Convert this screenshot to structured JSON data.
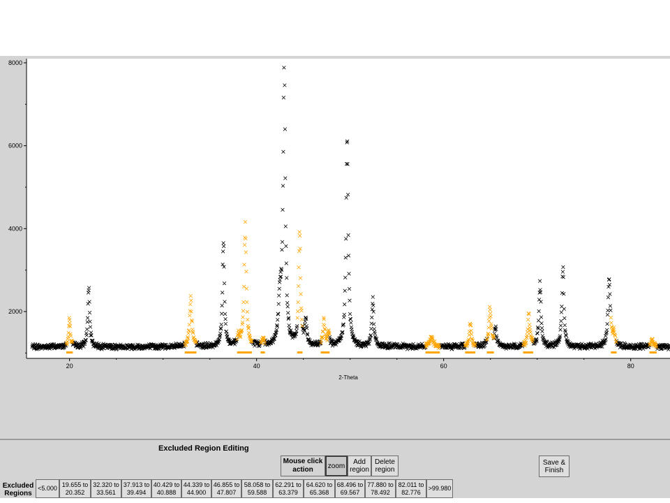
{
  "chart_data": {
    "type": "scatter",
    "xlabel": "2-Theta",
    "ylabel": "",
    "xlim": [
      15.4,
      84.2
    ],
    "ylim": [
      870,
      8100
    ],
    "x_ticks": [
      "20",
      "40",
      "60",
      "80"
    ],
    "y_ticks": [
      "2000",
      "4000",
      "6000",
      "8000"
    ],
    "baseline": 1150,
    "x_start": 16.0,
    "x_end": 84.2,
    "peaks": [
      {
        "x": 19.99,
        "height": 1800,
        "width": 0.12
      },
      {
        "x": 22.05,
        "height": 2550,
        "width": 0.12
      },
      {
        "x": 32.95,
        "height": 2320,
        "width": 0.14
      },
      {
        "x": 36.45,
        "height": 3750,
        "width": 0.12
      },
      {
        "x": 38.05,
        "height": 1350,
        "width": 0.15
      },
      {
        "x": 38.78,
        "height": 4000,
        "width": 0.14
      },
      {
        "x": 40.7,
        "height": 1300,
        "width": 0.15
      },
      {
        "x": 42.5,
        "height": 2200,
        "width": 0.18
      },
      {
        "x": 42.95,
        "height": 7950,
        "width": 0.14
      },
      {
        "x": 44.6,
        "height": 3820,
        "width": 0.12
      },
      {
        "x": 45.25,
        "height": 1800,
        "width": 0.12
      },
      {
        "x": 47.2,
        "height": 1750,
        "width": 0.12
      },
      {
        "x": 47.7,
        "height": 1500,
        "width": 0.12
      },
      {
        "x": 49.68,
        "height": 6120,
        "width": 0.14
      },
      {
        "x": 52.42,
        "height": 2270,
        "width": 0.13
      },
      {
        "x": 58.7,
        "height": 1350,
        "width": 0.25
      },
      {
        "x": 62.85,
        "height": 1750,
        "width": 0.12
      },
      {
        "x": 64.95,
        "height": 2050,
        "width": 0.14
      },
      {
        "x": 65.55,
        "height": 1600,
        "width": 0.12
      },
      {
        "x": 69.1,
        "height": 1900,
        "width": 0.14
      },
      {
        "x": 70.3,
        "height": 2650,
        "width": 0.13
      },
      {
        "x": 72.75,
        "height": 3030,
        "width": 0.13
      },
      {
        "x": 77.7,
        "height": 2800,
        "width": 0.15
      },
      {
        "x": 78.2,
        "height": 1450,
        "width": 0.13
      },
      {
        "x": 82.3,
        "height": 1350,
        "width": 0.14
      }
    ],
    "included_color": "#000000",
    "excluded_color": "#ffa500",
    "excluded_ranges": [
      [
        19.655,
        20.352
      ],
      [
        32.32,
        33.561
      ],
      [
        37.913,
        39.494
      ],
      [
        40.429,
        40.888
      ],
      [
        44.339,
        44.9
      ],
      [
        46.855,
        47.807
      ],
      [
        58.058,
        59.588
      ],
      [
        62.291,
        63.379
      ],
      [
        64.62,
        65.368
      ],
      [
        68.496,
        69.567
      ],
      [
        77.88,
        78.492
      ],
      [
        82.011,
        82.776
      ]
    ]
  },
  "panel": {
    "title": "Excluded Region Editing",
    "mouse_click_label": "Mouse click\naction",
    "zoom_label": "zoom",
    "add_region_label": "Add\nregion",
    "delete_region_label": "Delete\nregion",
    "save_finish_label": "Save &\nFinish",
    "excluded_regions_label": "Excluded\nRegions",
    "regions": [
      "<5.000",
      "19.655\nto 20.352",
      "32.320\nto 33.561",
      "37.913\nto 39.494",
      "40.429\nto 40.888",
      "44.339\nto 44.900",
      "46.855\nto 47.807",
      "58.058\nto 59.588",
      "62.291\nto 63.379",
      "64.620\nto 65.368",
      "68.496\nto 69.567",
      "77.880\nto 78.492",
      "82.011\nto 82.776",
      ">99.980"
    ]
  }
}
